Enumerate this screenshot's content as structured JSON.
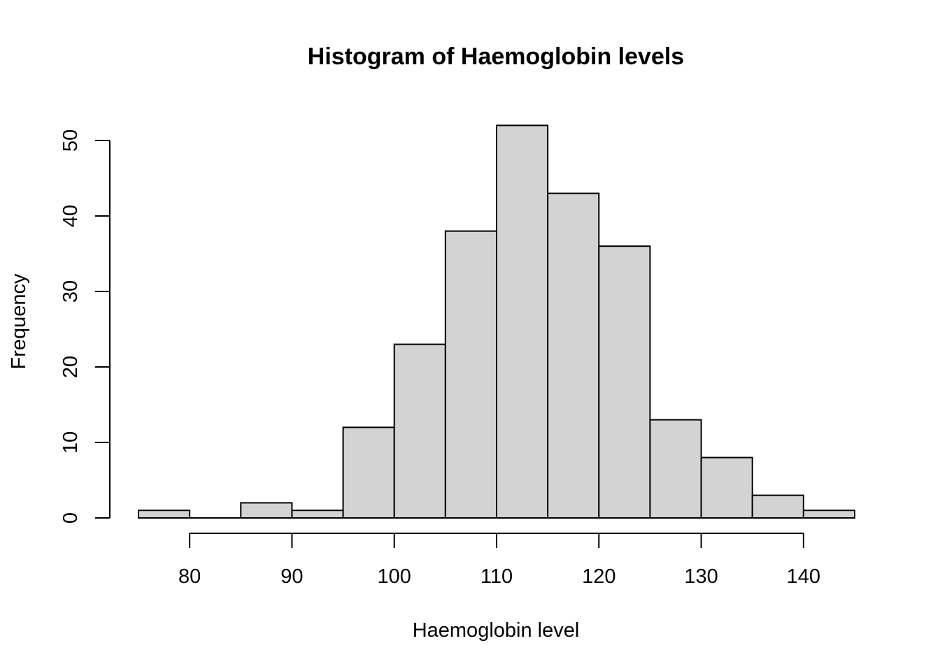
{
  "chart_data": {
    "type": "bar",
    "title": "Histogram of Haemoglobin levels",
    "xlabel": "Haemoglobin level",
    "ylabel": "Frequency",
    "bins": [
      {
        "start": 75,
        "end": 80,
        "count": 1
      },
      {
        "start": 80,
        "end": 85,
        "count": 0
      },
      {
        "start": 85,
        "end": 90,
        "count": 2
      },
      {
        "start": 90,
        "end": 95,
        "count": 1
      },
      {
        "start": 95,
        "end": 100,
        "count": 12
      },
      {
        "start": 100,
        "end": 105,
        "count": 23
      },
      {
        "start": 105,
        "end": 110,
        "count": 38
      },
      {
        "start": 110,
        "end": 115,
        "count": 52
      },
      {
        "start": 115,
        "end": 120,
        "count": 43
      },
      {
        "start": 120,
        "end": 125,
        "count": 36
      },
      {
        "start": 125,
        "end": 130,
        "count": 13
      },
      {
        "start": 130,
        "end": 135,
        "count": 8
      },
      {
        "start": 135,
        "end": 140,
        "count": 3
      },
      {
        "start": 140,
        "end": 145,
        "count": 1
      }
    ],
    "xlim": [
      75,
      145
    ],
    "ylim": [
      0,
      52
    ],
    "x_ticks": [
      80,
      90,
      100,
      110,
      120,
      130,
      140
    ],
    "y_ticks": [
      0,
      10,
      20,
      30,
      40,
      50
    ],
    "bar_color": "#d3d3d3",
    "grid": false,
    "legend": "none"
  }
}
